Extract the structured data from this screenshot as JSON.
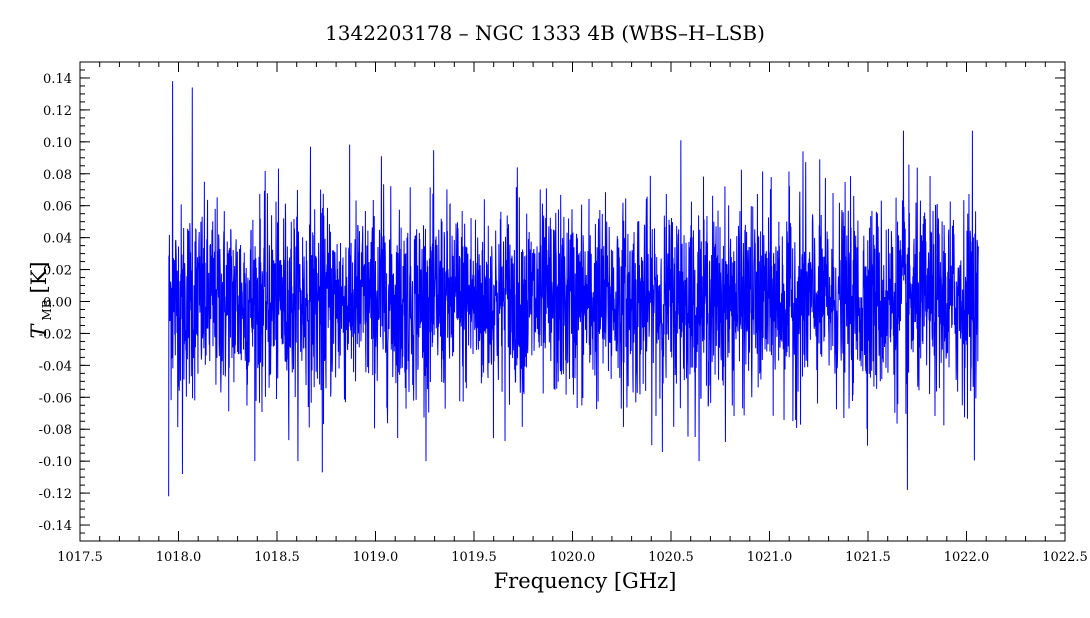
{
  "chart_data": {
    "type": "line",
    "title": "1342203178 – NGC 1333 4B (WBS–H–LSB)",
    "xlabel": "Frequency [GHz]",
    "ylabel": {
      "symbol": "T",
      "subscript": "MB",
      "unit": "[K]"
    },
    "xlim": [
      1017.5,
      1022.5
    ],
    "ylim": [
      -0.15,
      0.15
    ],
    "xticks": [
      "1017.5",
      "1018.0",
      "1018.5",
      "1019.0",
      "1019.5",
      "1020.0",
      "1020.5",
      "1021.0",
      "1021.5",
      "1022.0",
      "1022.5"
    ],
    "yticks": [
      "0.14",
      "0.12",
      "0.10",
      "0.08",
      "0.06",
      "0.04",
      "0.02",
      "0.00",
      "-0.02",
      "-0.04",
      "-0.06",
      "-0.08",
      "-0.10",
      "-0.12",
      "-0.14"
    ],
    "grid": false,
    "series": [
      {
        "color": "#0000ff",
        "x_range": [
          1017.95,
          1022.06
        ],
        "noise_rms": 0.03,
        "extremes": [
          {
            "x": 1017.95,
            "y": -0.122
          },
          {
            "x": 1017.97,
            "y": 0.138
          },
          {
            "x": 1018.07,
            "y": 0.134
          },
          {
            "x": 1018.02,
            "y": -0.108
          },
          {
            "x": 1018.67,
            "y": 0.097
          },
          {
            "x": 1018.73,
            "y": -0.107
          },
          {
            "x": 1019.03,
            "y": 0.091
          },
          {
            "x": 1019.72,
            "y": 0.084
          },
          {
            "x": 1020.55,
            "y": 0.101
          },
          {
            "x": 1021.17,
            "y": 0.094
          },
          {
            "x": 1021.68,
            "y": 0.107
          },
          {
            "x": 1021.7,
            "y": -0.118
          },
          {
            "x": 1022.03,
            "y": 0.107
          }
        ]
      }
    ]
  }
}
